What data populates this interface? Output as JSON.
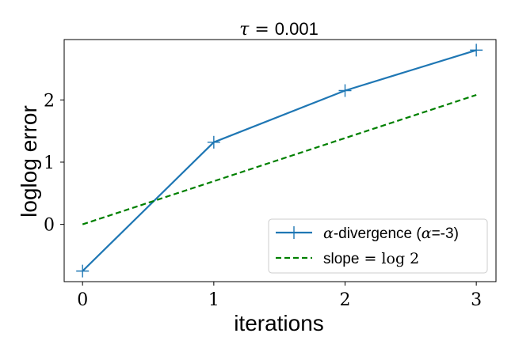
{
  "chart_data": {
    "type": "line",
    "title": {
      "prefix": "τ",
      "eq": " = ",
      "value": "0.001"
    },
    "xlabel": "iterations",
    "ylabel": "loglog error",
    "xlim": [
      -0.14,
      3.15
    ],
    "ylim": [
      -0.92,
      2.97
    ],
    "xticks": [
      0,
      1,
      2,
      3
    ],
    "xtick_labels": [
      "0",
      "1",
      "2",
      "3"
    ],
    "yticks": [
      0,
      1,
      2
    ],
    "ytick_labels": [
      "0",
      "1",
      "2"
    ],
    "grid": false,
    "legend_position": "lower-right",
    "series": [
      {
        "name": "α-divergence (α=-3)",
        "legend_label": {
          "math_prefix": "α",
          "text": "-divergence (",
          "math_inner": "α",
          "suffix": "=-3)"
        },
        "x": [
          0,
          1,
          2,
          3
        ],
        "y": [
          -0.75,
          1.32,
          2.15,
          2.8
        ],
        "color": "#1f77b4",
        "linestyle": "solid",
        "marker": "+"
      },
      {
        "name": "slope = log 2",
        "legend_label": {
          "text": "slope",
          "eq": " = ",
          "math": "log 2"
        },
        "x": [
          0,
          3
        ],
        "y": [
          0,
          2.08
        ],
        "color": "#008000",
        "linestyle": "dashed",
        "marker": "none"
      }
    ]
  }
}
